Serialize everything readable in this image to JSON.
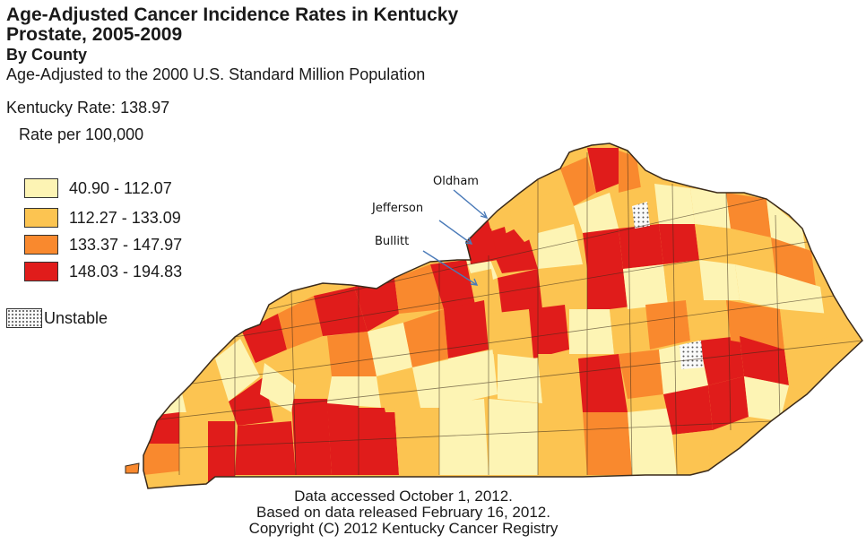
{
  "title_line1": "Age-Adjusted Cancer Incidence Rates in Kentucky",
  "title_line2": "Prostate, 2005-2009",
  "subtitle": "By County",
  "note": "Age-Adjusted to the 2000 U.S. Standard Million Population",
  "state_rate": "Kentucky Rate: 138.97",
  "legend": {
    "title": "Rate per 100,000",
    "items": [
      {
        "label": "40.90 - 112.07",
        "color": "#fdf4b4"
      },
      {
        "label": "112.27 - 133.09",
        "color": "#fcc451"
      },
      {
        "label": "133.37 - 147.97",
        "color": "#f9892e"
      },
      {
        "label": "148.03 - 194.83",
        "color": "#e01c1b"
      }
    ],
    "unstable_label": "Unstable"
  },
  "callouts": {
    "oldham": "Oldham",
    "jefferson": "Jefferson",
    "bullitt": "Bullitt"
  },
  "footer": {
    "line1": "Data accessed October 1, 2012.",
    "line2": "Based on data released February 16, 2012.",
    "line3": "Copyright (C) 2012 Kentucky Cancer Registry"
  },
  "colors": {
    "border": "#3a2a1a",
    "arrow": "#4a7ab8"
  }
}
